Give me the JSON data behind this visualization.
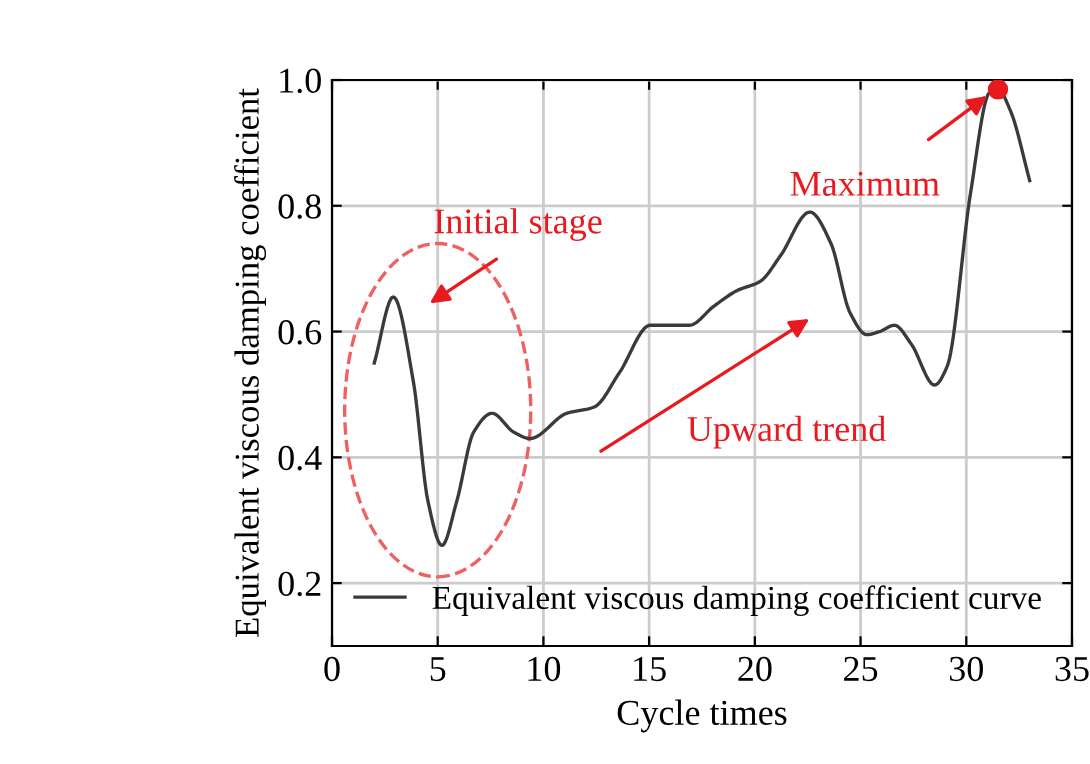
{
  "chart_data": {
    "type": "line",
    "xlabel": "Cycle times",
    "ylabel": "Equivalent viscous damping coefficient",
    "xlim": [
      0,
      35
    ],
    "xticks": [
      0,
      5,
      10,
      15,
      20,
      25,
      30,
      35
    ],
    "ylim": [
      0.1,
      1.0
    ],
    "yticks": [
      0.2,
      0.4,
      0.6,
      0.8,
      {
        "value": 1.0,
        "label": "1.0"
      }
    ],
    "grid": true,
    "legend": "bottom right",
    "line_style": "solid",
    "series": [
      {
        "name": "Equivalent viscous damping coefficient curve",
        "color": "#3a3a3a",
        "x": [
          2.0,
          2.9,
          3.85,
          4.54,
          5.2,
          5.9,
          6.7,
          7.57,
          8.6,
          9.37,
          11.1,
          12.4,
          13.6,
          15.05,
          15.8,
          16.9,
          18.05,
          19.15,
          20.26,
          21.2,
          22.6,
          23.6,
          24.5,
          25.3,
          25.9,
          26.6,
          27.4,
          28.5,
          29.1,
          30.2,
          31.1,
          31.5,
          32.1,
          33.0
        ],
        "values": [
          0.55,
          0.655,
          0.52,
          0.33,
          0.26,
          0.33,
          0.44,
          0.47,
          0.44,
          0.43,
          0.47,
          0.48,
          0.535,
          0.61,
          0.61,
          0.61,
          0.64,
          0.665,
          0.68,
          0.72,
          0.79,
          0.74,
          0.63,
          0.595,
          0.6,
          0.61,
          0.58,
          0.515,
          0.545,
          0.82,
          0.98,
          0.985,
          0.95,
          0.84
        ]
      },
      {
        "type": "scatter",
        "color": "#e8191f",
        "marker": "circle",
        "x": [
          31.5
        ],
        "values": [
          0.985
        ]
      }
    ],
    "annotations": [
      "Initial stage",
      "Upward trend",
      {
        "text": "Maximum",
        "x": 31.2,
        "y": 0.98
      }
    ]
  }
}
